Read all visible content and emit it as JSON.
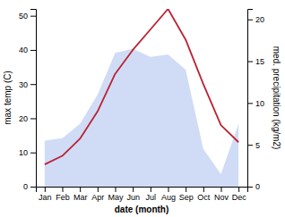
{
  "chart_data": {
    "type": "line",
    "categories": [
      "Jan",
      "Feb",
      "Mar",
      "Apr",
      "May",
      "Jun",
      "Jul",
      "Aug",
      "Sep",
      "Oct",
      "Nov",
      "Dec"
    ],
    "series": [
      {
        "type": "area",
        "color": "#b0c4f0",
        "axis": "y2",
        "values": [
          5.5,
          5.8,
          7.5,
          11.0,
          16.0,
          16.5,
          15.5,
          15.8,
          14.0,
          4.5,
          1.5,
          7.5
        ]
      },
      {
        "type": "line",
        "color": "#bb2233",
        "values": [
          6.5,
          9,
          14,
          22,
          33,
          40,
          46,
          52,
          43,
          30,
          18,
          13
        ]
      }
    ],
    "xlabel": "date (month)",
    "ylabel": "max temp (C)",
    "y2label": "med. precipitation (kg/m2)",
    "ylim": [
      0,
      52
    ],
    "yticks": [
      0,
      10,
      20,
      30,
      40,
      50
    ],
    "y2lim": [
      0,
      21.25
    ],
    "y2ticks": [
      0,
      5,
      10,
      15,
      20
    ],
    "grid": false
  }
}
